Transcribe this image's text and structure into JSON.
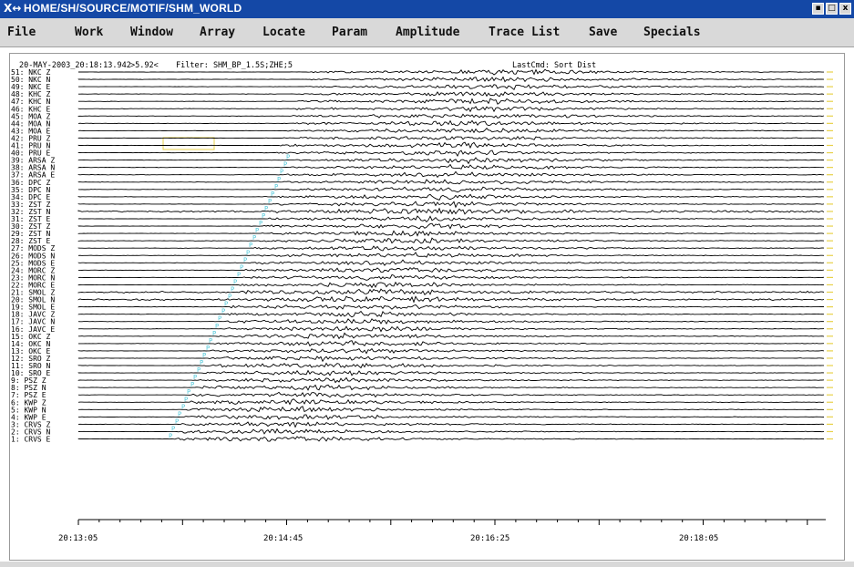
{
  "window": {
    "icon": "X↔",
    "title": "HOME/SH/SOURCE/MOTIF/SHM_WORLD",
    "buttons": [
      "▪",
      "□",
      "x"
    ]
  },
  "menu": [
    "File",
    "Work",
    "Window",
    "Array",
    "Locate",
    "Param",
    "Amplitude",
    "Trace List",
    "Save",
    "Specials"
  ],
  "header": {
    "datetime": "20-MAY-2003_20:18:13.942",
    "cursor_value": ">5.92<",
    "filter": "Filter: SHM_BP_1.5S;ZHE;5",
    "last_cmd": "LastCmd: Sort Dist"
  },
  "traces": [
    "51: NKC Z",
    "50: NKC N",
    "49: NKC E",
    "48: KHC Z",
    "47: KHC N",
    "46: KHC E",
    "45: MOA Z",
    "44: MOA N",
    "43: MOA E",
    "42: PRU Z",
    "41: PRU N",
    "40: PRU E",
    "39: ARSA Z",
    "38: ARSA N",
    "37: ARSA E",
    "36: DPC Z",
    "35: DPC N",
    "34: DPC E",
    "33: ZST Z",
    "32: ZST N",
    "31: ZST E",
    "30: ZST Z",
    "29: ZST N",
    "28: ZST E",
    "27: MODS Z",
    "26: MODS N",
    "25: MODS E",
    "24: MORC Z",
    "23: MORC N",
    "22: MORC E",
    "21: SMOL Z",
    "20: SMOL N",
    "19: SMOL E",
    "18: JAVC Z",
    "17: JAVC N",
    "16: JAVC E",
    "15: OKC Z",
    "14: OKC N",
    "13: OKC E",
    "12: SRO Z",
    "11: SRO N",
    "10: SRO E",
    "9: PSZ Z",
    "8: PSZ N",
    "7: PSZ E",
    "6: KWP Z",
    "5: KWP N",
    "4: KWP E",
    "3: CRVS Z",
    "2: CRVS N",
    "1: CRVS E"
  ],
  "phase_label": "P",
  "time_axis": [
    "20:13:05",
    "20:14:45",
    "20:16:25",
    "20:18:05"
  ],
  "colors": {
    "titlebar": "#1448a6",
    "menubar": "#d9d9d9",
    "trace": "#000000",
    "phase_pick": "#4fc6d8",
    "end_marker": "#e8d24a",
    "selection_box": "#e8d24a"
  }
}
